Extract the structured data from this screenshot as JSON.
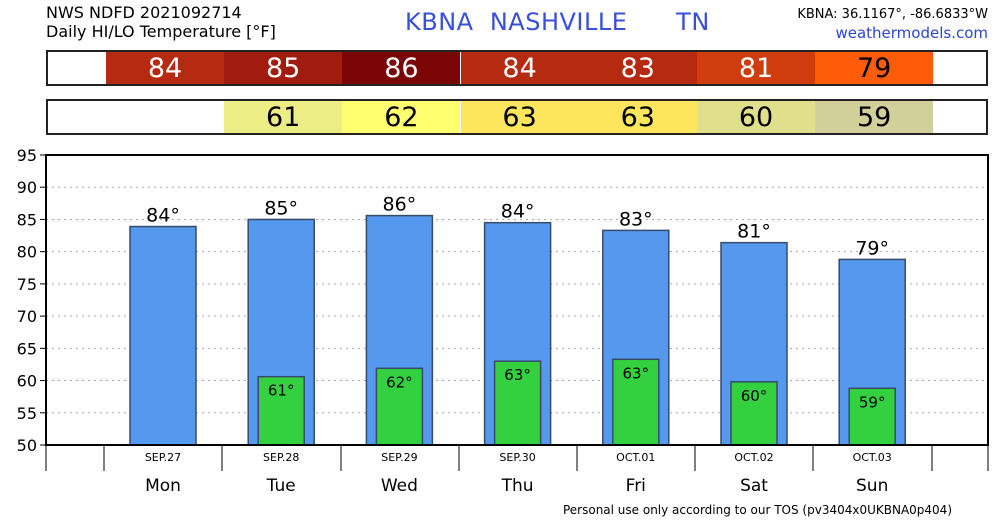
{
  "header": {
    "line1": "NWS NDFD 2021092714",
    "line2": "Daily HI/LO Temperature [°F]",
    "station": "KBNA  NASHVILLE      TN",
    "coords": "KBNA: 36.1167°, -86.6833°W",
    "site": "weathermodels.com"
  },
  "footer": "Personal use only according to our TOS (pv3404x0UKBNA0p404)",
  "colors": {
    "hi_bar": "#5599ee",
    "lo_bar": "#33d13f",
    "bar_stroke": "#384a6a",
    "hi_cells": [
      "#b52a10",
      "#a11c0e",
      "#7a0606",
      "#b52a10",
      "#b52a10",
      "#cf3d0e",
      "#ff5c0a"
    ],
    "lo_cells": [
      null,
      "#eded85",
      "#ffff70",
      "#fde65c",
      "#fde65c",
      "#e0e08c",
      "#d2d09a"
    ],
    "hi_text": [
      "#ffffff",
      "#ffffff",
      "#ffffff",
      "#ffffff",
      "#ffffff",
      "#ffffff",
      "#000000"
    ]
  },
  "chart_data": {
    "type": "bar",
    "categories": [
      "Mon",
      "Tue",
      "Wed",
      "Thu",
      "Fri",
      "Sat",
      "Sun"
    ],
    "dates": [
      "SEP.27",
      "SEP.28",
      "SEP.29",
      "SEP.30",
      "OCT.01",
      "OCT.02",
      "OCT.03"
    ],
    "series": [
      {
        "values": [
          84,
          85,
          86,
          84,
          83,
          81,
          79
        ],
        "labels": [
          "84°",
          "85°",
          "86°",
          "84°",
          "83°",
          "81°",
          "79°"
        ]
      },
      {
        "values": [
          null,
          61,
          62,
          63,
          63,
          60,
          59
        ],
        "labels": [
          "",
          "61°",
          "62°",
          "63°",
          "63°",
          "60°",
          "59°"
        ]
      }
    ],
    "precise_hi": [
      83.9,
      85.0,
      85.6,
      84.5,
      83.3,
      81.4,
      78.8
    ],
    "precise_lo": [
      null,
      60.6,
      61.9,
      63.0,
      63.3,
      59.8,
      58.8
    ],
    "ylim": [
      50,
      95
    ],
    "yticks": [
      50,
      55,
      60,
      65,
      70,
      75,
      80,
      85,
      90,
      95
    ],
    "grid": true
  }
}
